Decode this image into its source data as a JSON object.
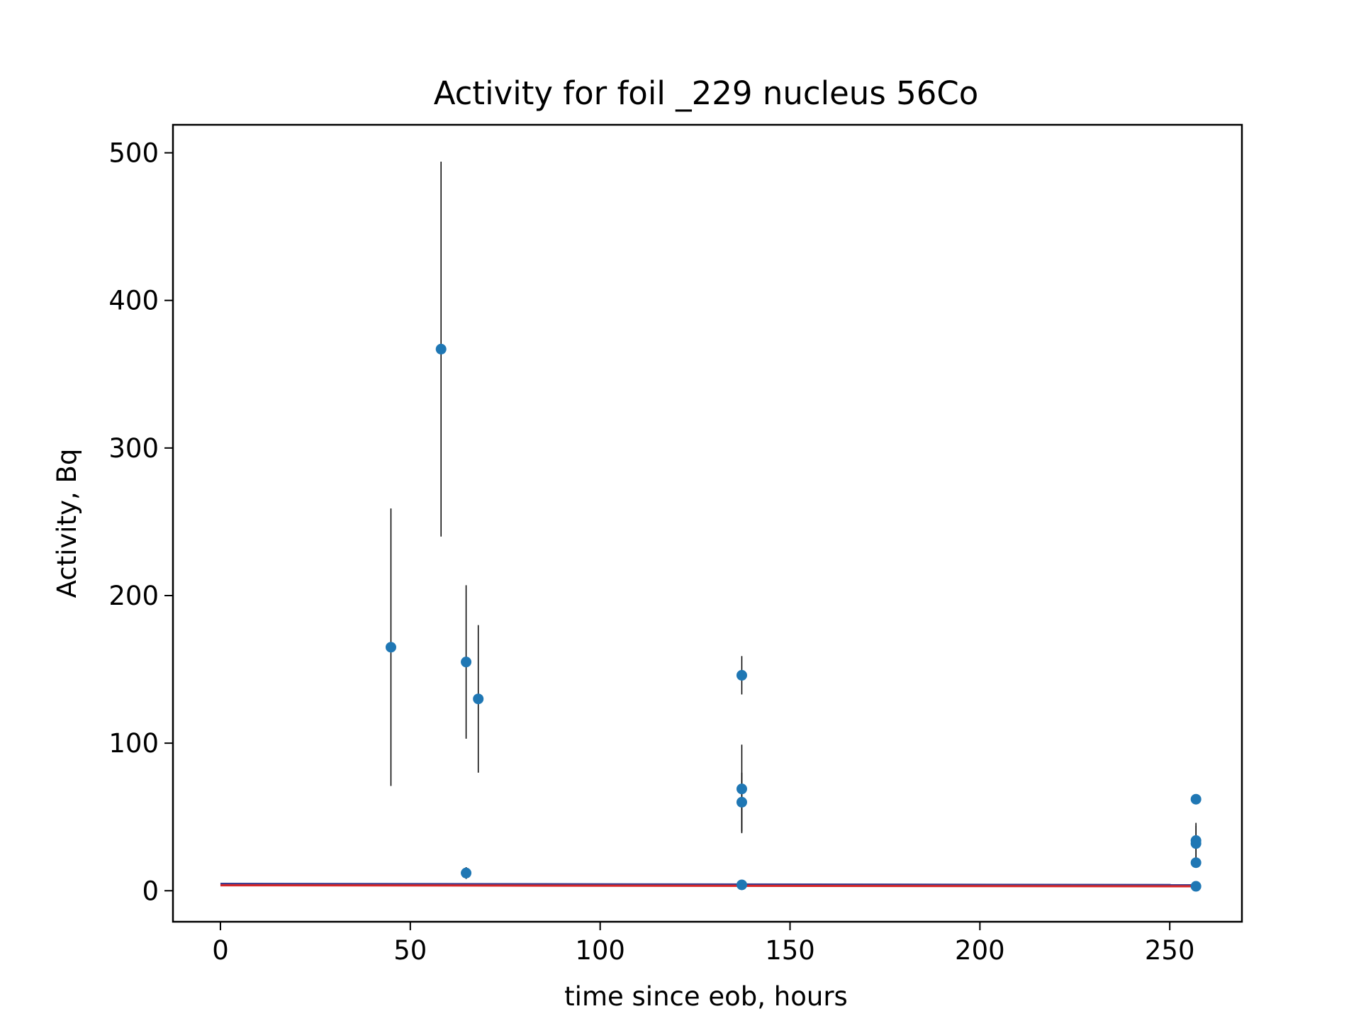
{
  "chart_data": {
    "type": "scatter",
    "title": "Activity for foil _229 nucleus 56Co",
    "xlabel": "time since eob, hours",
    "ylabel": "Activity, Bq",
    "xlim": [
      -12.5,
      269
    ],
    "ylim": [
      -21,
      519
    ],
    "xticks": [
      0,
      50,
      100,
      150,
      200,
      250
    ],
    "yticks": [
      0,
      100,
      200,
      300,
      400,
      500
    ],
    "grid": false,
    "series": [
      {
        "kind": "errorbar",
        "marker_color": "#1f77b4",
        "errorbar_color": "#000000",
        "points": [
          {
            "x": 44.9,
            "y": 165,
            "yerr_low": 94,
            "yerr_high": 94
          },
          {
            "x": 58.1,
            "y": 367,
            "yerr_low": 127,
            "yerr_high": 127
          },
          {
            "x": 64.7,
            "y": 155,
            "yerr_low": 52,
            "yerr_high": 52
          },
          {
            "x": 64.7,
            "y": 12,
            "yerr_low": 4,
            "yerr_high": 4
          },
          {
            "x": 67.9,
            "y": 130,
            "yerr_low": 50,
            "yerr_high": 50
          },
          {
            "x": 137.3,
            "y": 146,
            "yerr_low": 13,
            "yerr_high": 13
          },
          {
            "x": 137.3,
            "y": 69,
            "yerr_low": 30,
            "yerr_high": 30
          },
          {
            "x": 137.3,
            "y": 60,
            "yerr_low": 20,
            "yerr_high": 20
          },
          {
            "x": 137.3,
            "y": 4,
            "yerr_low": 1,
            "yerr_high": 1
          },
          {
            "x": 256.9,
            "y": 62,
            "yerr_low": 2,
            "yerr_high": 2
          },
          {
            "x": 256.9,
            "y": 34,
            "yerr_low": 12,
            "yerr_high": 12
          },
          {
            "x": 256.9,
            "y": 32,
            "yerr_low": 12,
            "yerr_high": 12
          },
          {
            "x": 256.9,
            "y": 19,
            "yerr_low": 3,
            "yerr_high": 3
          },
          {
            "x": 256.9,
            "y": 3,
            "yerr_low": 1,
            "yerr_high": 1
          }
        ]
      },
      {
        "kind": "line",
        "color": "#3b3b8f",
        "x": [
          0,
          256.9
        ],
        "y": [
          4.7,
          3.9
        ]
      },
      {
        "kind": "line",
        "color": "#d62728",
        "x": [
          0,
          256.9
        ],
        "y": [
          3.7,
          3.0
        ]
      }
    ]
  }
}
